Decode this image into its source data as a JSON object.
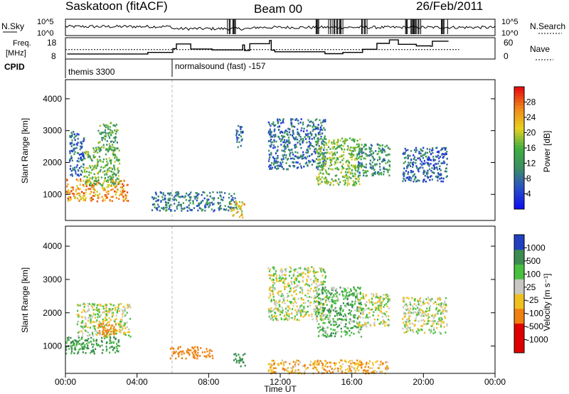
{
  "header": {
    "station": "Saskatoon (fitACF)",
    "beam": "Beam 00",
    "date": "26/Feb/2011"
  },
  "sky_panel": {
    "left_label": "N.Sky",
    "right_label": "N.Search",
    "left_ticks": [
      "10^5",
      "10^0"
    ],
    "right_ticks": [
      "10^5",
      "10^0"
    ]
  },
  "freq_panel": {
    "left_label_line1": "Freq.",
    "left_label_line2": "[MHz]",
    "left_ticks": [
      "18",
      "8"
    ],
    "right_label": "Nave",
    "right_ticks": [
      "60",
      "0"
    ]
  },
  "cpid": {
    "label": "CPID",
    "segments": [
      {
        "start_hour": 0.0,
        "text": "themis 3300"
      },
      {
        "start_hour": 6.0,
        "text": "normalsound (fast) -157"
      }
    ]
  },
  "x_axis": {
    "label": "Time UT",
    "ticks": [
      "00:00",
      "04:00",
      "08:00",
      "12:00",
      "16:00",
      "20:00",
      "00:00"
    ]
  },
  "power_panel": {
    "ylabel": "Slant Range [km]",
    "yticks": [
      "1000",
      "2000",
      "3000",
      "4000"
    ],
    "colorbar_label": "Power [dB]",
    "colorbar_ticks": [
      "4",
      "8",
      "12",
      "16",
      "20",
      "24",
      "28"
    ],
    "colors": {
      "low": "#2020e0",
      "mid": "#40a860",
      "high": "#e80000"
    }
  },
  "velocity_panel": {
    "ylabel": "Slant Range [km]",
    "yticks": [
      "1000",
      "2000",
      "3000",
      "4000"
    ],
    "colorbar_label": "Velocity [m s⁻¹]",
    "colorbar_ticks": [
      "1000",
      "500",
      "100",
      "25",
      "-25",
      "-100",
      "-500",
      "-1000"
    ],
    "colors": {
      "pos": "#2040c0",
      "zero": "#c8c8c0",
      "neg": "#e00000"
    }
  },
  "chart_data": {
    "type": "heatmap",
    "x_range_hours": [
      0,
      24
    ],
    "y_range_km": [
      180,
      4600
    ],
    "frequency_mhz": {
      "x_hours": [
        0.1,
        4.6,
        6.0,
        6.2,
        7.0,
        8.2,
        9.9,
        10.0,
        10.3,
        11.4,
        11.5,
        11.7,
        14.5,
        15.5,
        16.6,
        17.4,
        18.1,
        18.6,
        19.6,
        20.4,
        20.5,
        21.4
      ],
      "values": [
        9.4,
        10.4,
        12.8,
        15.8,
        12.6,
        12.0,
        15.2,
        11.6,
        16.0,
        18.0,
        11.8,
        10.8,
        9.6,
        10.4,
        12.4,
        16.2,
        18.4,
        15.6,
        14.6,
        14.4,
        17.6,
        17.6
      ]
    },
    "nave_mean_fraction": 0.44,
    "power_cells": [
      {
        "t0": 0.0,
        "t1": 3.5,
        "r0": 800,
        "r1": 1500,
        "dB": 24
      },
      {
        "t0": 1.0,
        "t1": 3.0,
        "r0": 1300,
        "r1": 2500,
        "dB": 16
      },
      {
        "t0": 1.8,
        "t1": 2.9,
        "r0": 2400,
        "r1": 3300,
        "dB": 14
      },
      {
        "t0": 0.2,
        "t1": 1.0,
        "r0": 1600,
        "r1": 3000,
        "dB": 9
      },
      {
        "t0": 4.8,
        "t1": 9.5,
        "r0": 500,
        "r1": 1100,
        "dB": 10
      },
      {
        "t0": 9.2,
        "t1": 10.0,
        "r0": 300,
        "r1": 800,
        "dB": 22
      },
      {
        "t0": 9.5,
        "t1": 9.9,
        "r0": 2500,
        "r1": 3200,
        "dB": 8
      },
      {
        "t0": 11.3,
        "t1": 14.5,
        "r0": 1800,
        "r1": 3400,
        "dB": 9
      },
      {
        "t0": 14.0,
        "t1": 16.5,
        "r0": 1300,
        "r1": 2800,
        "dB": 17
      },
      {
        "t0": 16.3,
        "t1": 18.1,
        "r0": 1600,
        "r1": 2600,
        "dB": 12
      },
      {
        "t0": 18.8,
        "t1": 21.3,
        "r0": 1400,
        "r1": 2500,
        "dB": 8
      }
    ],
    "velocity_cells": [
      {
        "t0": 0.0,
        "t1": 3.0,
        "r0": 800,
        "r1": 1300,
        "v": 120
      },
      {
        "t0": 0.6,
        "t1": 3.6,
        "r0": 1300,
        "r1": 2300,
        "v": 0
      },
      {
        "t0": 1.8,
        "t1": 2.8,
        "r0": 1300,
        "r1": 1700,
        "v": -300
      },
      {
        "t0": 5.8,
        "t1": 8.2,
        "r0": 650,
        "r1": 1000,
        "v": -400
      },
      {
        "t0": 9.3,
        "t1": 10.0,
        "r0": 400,
        "r1": 800,
        "v": 150
      },
      {
        "t0": 11.3,
        "t1": 14.5,
        "r0": 1800,
        "r1": 3400,
        "v": 0
      },
      {
        "t0": 14.0,
        "t1": 16.5,
        "r0": 1300,
        "r1": 2800,
        "v": 80
      },
      {
        "t0": 16.3,
        "t1": 18.1,
        "r0": 1600,
        "r1": 2600,
        "v": 0
      },
      {
        "t0": 18.8,
        "t1": 21.3,
        "r0": 1400,
        "r1": 2500,
        "v": 0
      },
      {
        "t0": 11.3,
        "t1": 18.0,
        "r0": 200,
        "r1": 600,
        "v": -80
      }
    ]
  }
}
